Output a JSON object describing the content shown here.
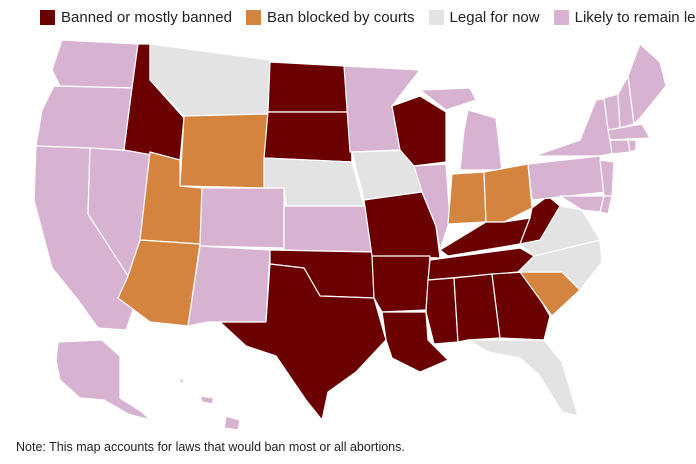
{
  "legend": {
    "banned": {
      "label": "Banned or mostly banned",
      "color": "#6b0000"
    },
    "blocked": {
      "label": "Ban blocked by courts",
      "color": "#d4843e"
    },
    "legal_now": {
      "label": "Legal for now",
      "color": "#e3e3e3"
    },
    "likely_legal": {
      "label": "Likely to remain legal",
      "color": "#d8b2d1"
    }
  },
  "note": "Note: This map accounts for laws that would ban most or all abortions."
}
